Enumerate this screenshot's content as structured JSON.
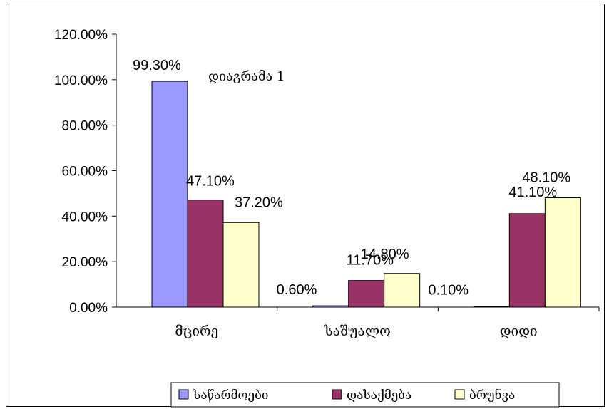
{
  "chart_data": {
    "type": "bar",
    "title": "დიაგრამა 1",
    "categories": [
      "მცირე",
      "საშუალო",
      "დიდი"
    ],
    "series": [
      {
        "name": "საწარმოები",
        "color": "#9999ff",
        "values": [
          99.3,
          0.6,
          0.1
        ],
        "labels": [
          "99.30%",
          "0.60%",
          "0.10%"
        ]
      },
      {
        "name": "დასაქმება",
        "color": "#993366",
        "values": [
          47.1,
          11.7,
          41.1
        ],
        "labels": [
          "47.10%",
          "11.70%",
          "41.10%"
        ]
      },
      {
        "name": "ბრუნვა",
        "color": "#ffffcc",
        "values": [
          37.2,
          14.8,
          48.1
        ],
        "labels": [
          "37.20%",
          "14.80%",
          "48.10%"
        ]
      }
    ],
    "yticks": [
      "0.00%",
      "20.00%",
      "40.00%",
      "60.00%",
      "80.00%",
      "100.00%",
      "120.00%"
    ],
    "ylim": [
      0,
      120
    ],
    "grid": false,
    "legend": "bottom"
  }
}
